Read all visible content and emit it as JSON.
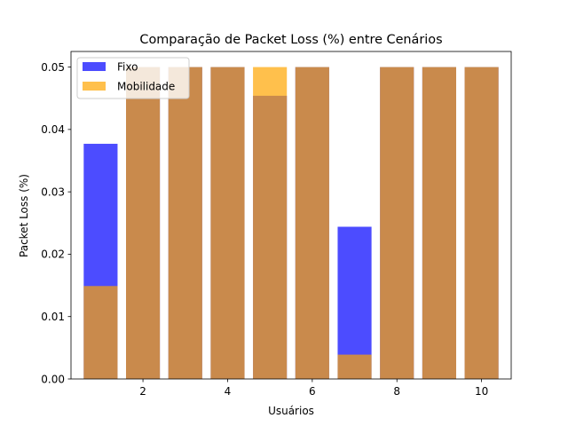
{
  "chart_data": {
    "type": "bar",
    "title": "Comparação de Packet Loss (%) entre Cenários",
    "xlabel": "Usuários",
    "ylabel": "Packet Loss (%)",
    "x": [
      1,
      2,
      3,
      4,
      5,
      6,
      7,
      8,
      9,
      10
    ],
    "xlim": [
      0.3,
      10.7
    ],
    "ylim": [
      0.0,
      0.0525
    ],
    "xticks": [
      2,
      4,
      6,
      8,
      10
    ],
    "xtick_labels": [
      "2",
      "4",
      "6",
      "8",
      "10"
    ],
    "yticks": [
      0.0,
      0.01,
      0.02,
      0.03,
      0.04,
      0.05
    ],
    "ytick_labels": [
      "0.00",
      "0.01",
      "0.02",
      "0.03",
      "0.04",
      "0.05"
    ],
    "grid": false,
    "legend_position": "top-left",
    "bar_width": 0.8,
    "series": [
      {
        "name": "Fixo",
        "values": [
          0.0377,
          0.05,
          0.05,
          0.05,
          0.0454,
          0.05,
          0.0244,
          0.05,
          0.05,
          0.05
        ],
        "color": "#0000ff",
        "opacity": 0.7
      },
      {
        "name": "Mobilidade",
        "values": [
          0.0149,
          0.05,
          0.05,
          0.05,
          0.05,
          0.05,
          0.0039,
          0.05,
          0.05,
          0.05
        ],
        "color": "#ffa500",
        "opacity": 0.7
      }
    ]
  }
}
